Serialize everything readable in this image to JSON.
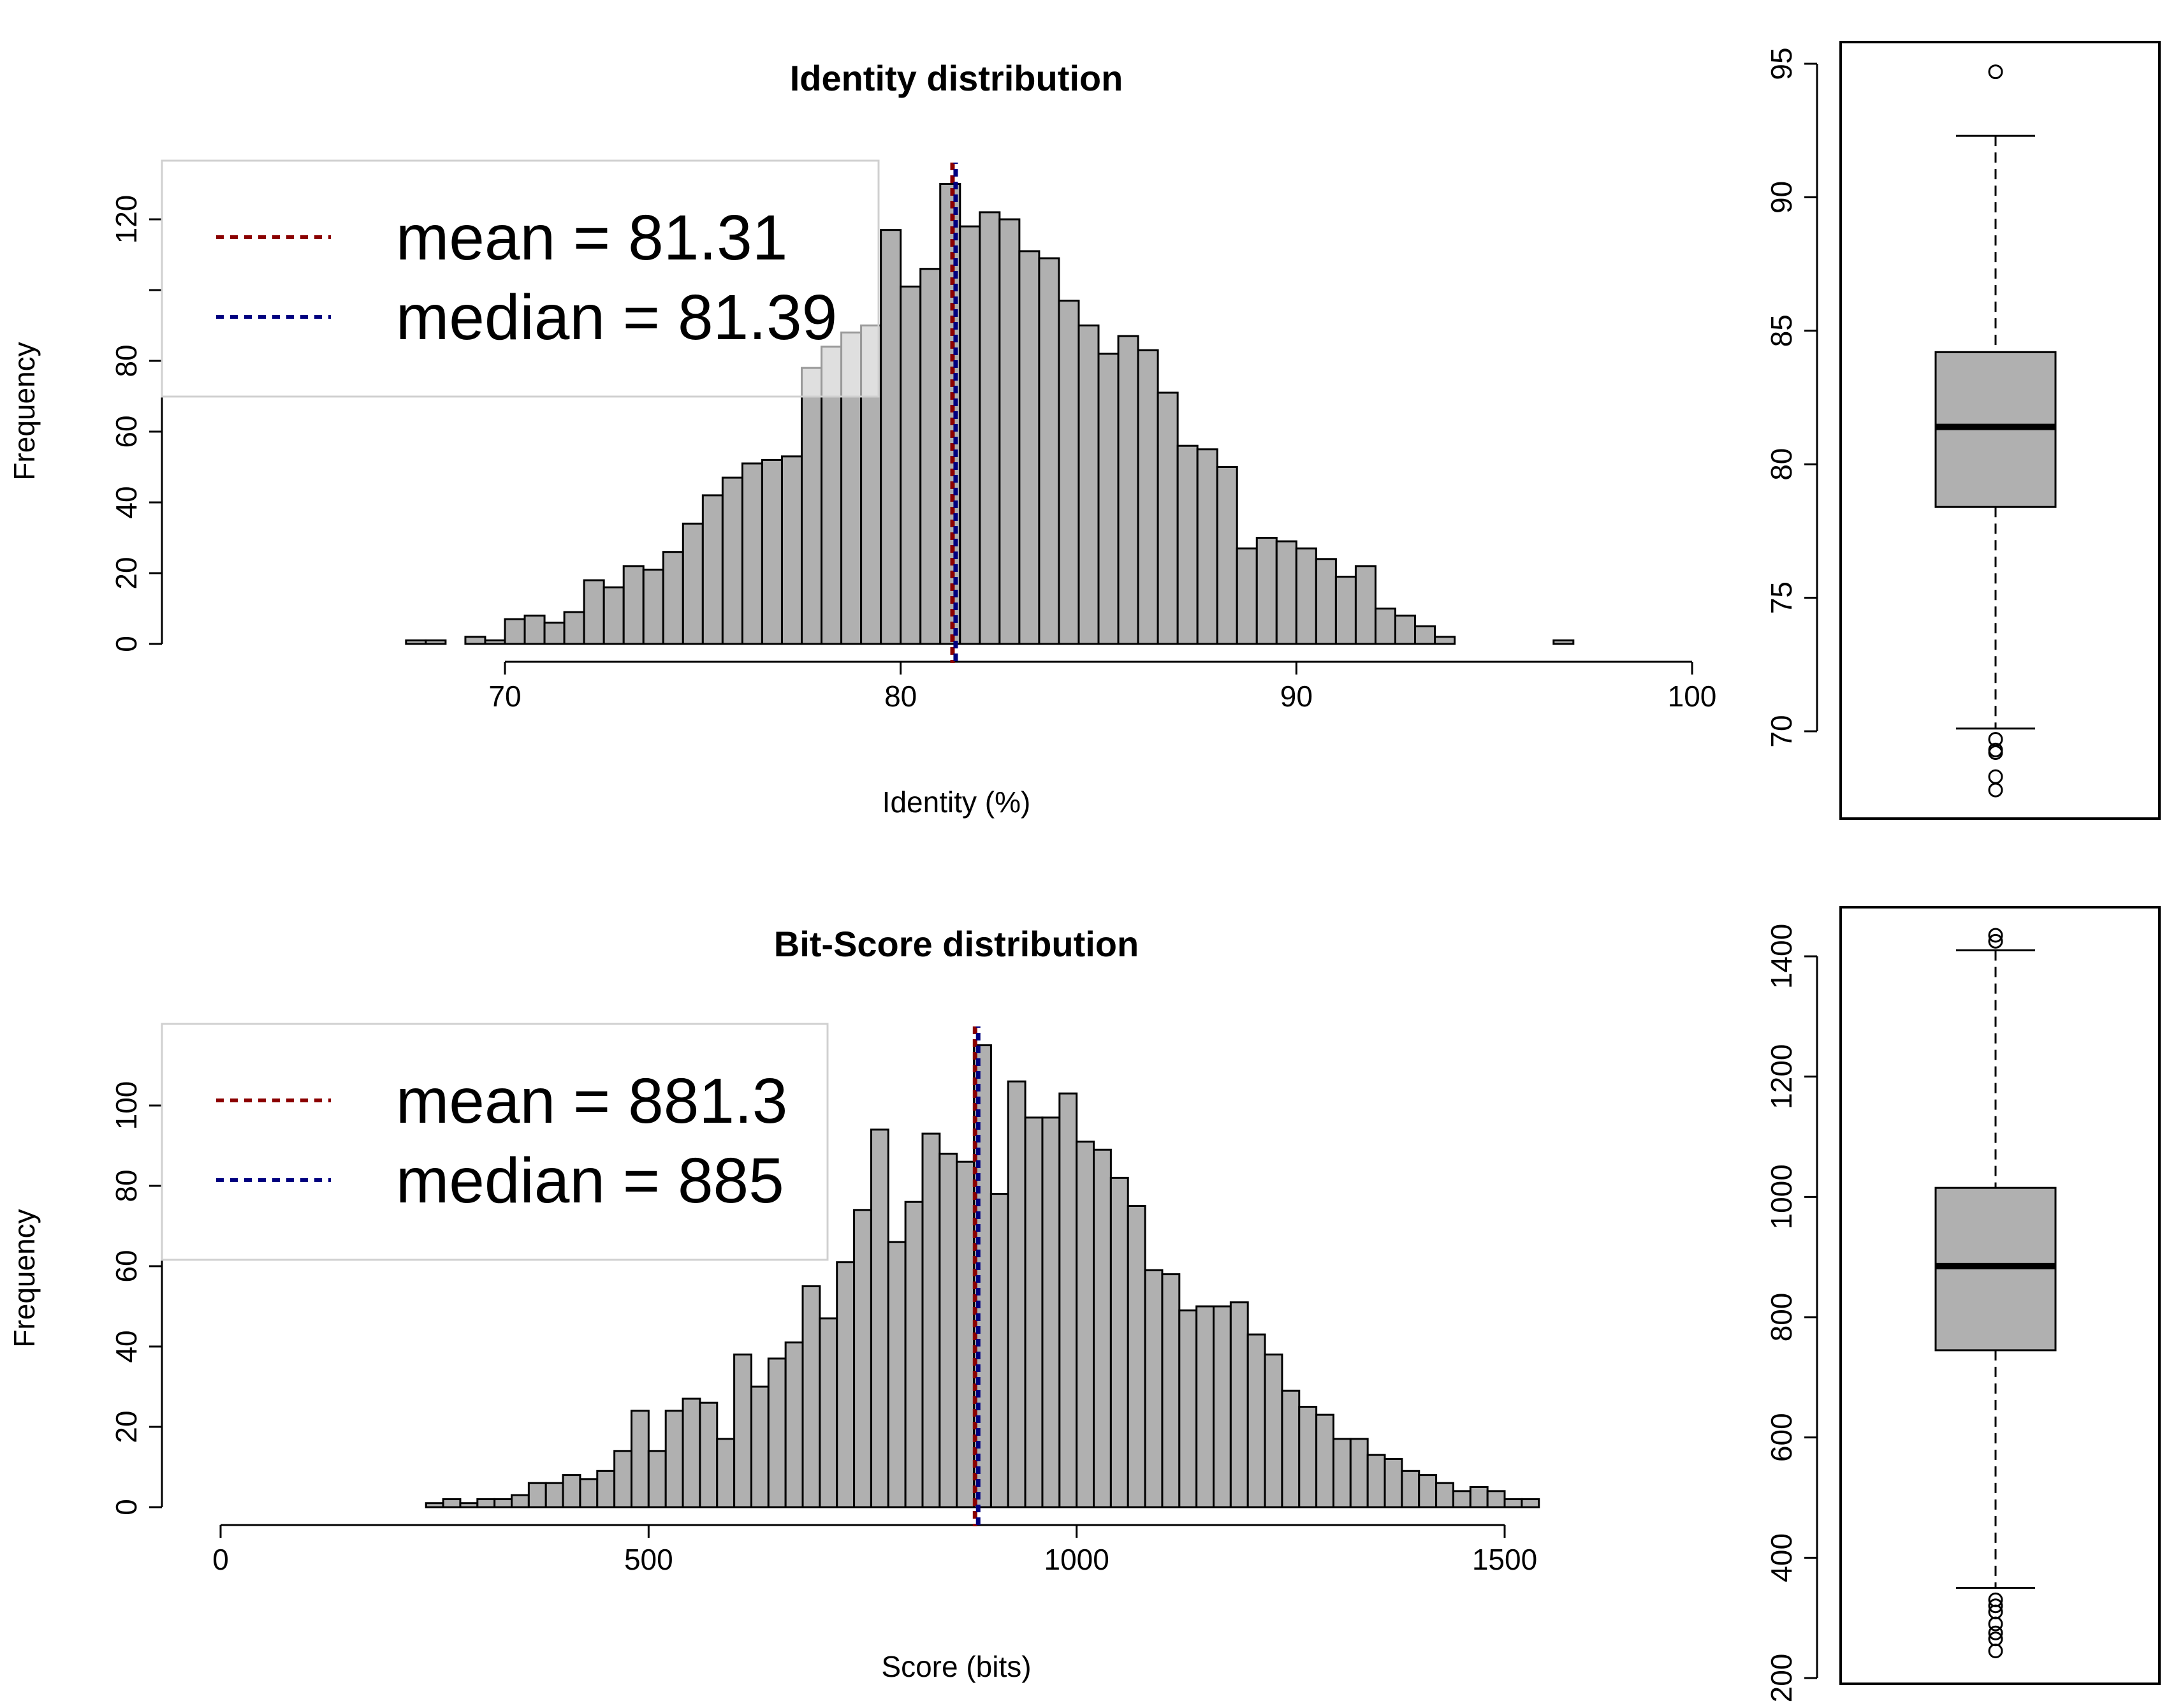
{
  "colors": {
    "bar_fill": "#b0b0b0",
    "axis": "#000000",
    "mean_line": "#8b0000",
    "median_line": "#000080",
    "legend_box_fill": "#ffffff",
    "legend_box_stroke": "#d0d0d0"
  },
  "chart_data": [
    {
      "type": "bar",
      "subtype": "histogram",
      "title": "Identity distribution",
      "xlabel": "Identity (%)",
      "ylabel": "Frequency",
      "xlim": [
        70,
        100
      ],
      "ylim": [
        0,
        120
      ],
      "x_ticks": [
        "70",
        "80",
        "90",
        "100"
      ],
      "y_ticks": [
        "0",
        "20",
        "40",
        "60",
        "80",
        "",
        "120"
      ],
      "y_tick_values": [
        0,
        20,
        40,
        60,
        80,
        100,
        120
      ],
      "bin_width": 0.5,
      "bin_start": 67.5,
      "values": [
        1,
        1,
        0,
        2,
        1,
        7,
        8,
        6,
        9,
        18,
        16,
        22,
        21,
        26,
        34,
        42,
        47,
        51,
        52,
        53,
        78,
        84,
        88,
        90,
        117,
        101,
        106,
        130,
        118,
        122,
        120,
        111,
        109,
        97,
        90,
        82,
        87,
        83,
        71,
        56,
        55,
        50,
        27,
        30,
        29,
        27,
        24,
        19,
        22,
        10,
        8,
        5,
        2,
        0,
        0,
        0,
        0,
        0,
        1
      ],
      "mean": 81.31,
      "median": 81.39,
      "legend_position": "top-left",
      "legend": [
        {
          "label": "mean = 81.31",
          "line": "mean"
        },
        {
          "label": "median = 81.39",
          "line": "median"
        }
      ]
    },
    {
      "type": "boxplot",
      "ylim": [
        70,
        95
      ],
      "y_ticks": [
        "70",
        "75",
        "80",
        "85",
        "90",
        "95"
      ],
      "y_tick_values": [
        70,
        75,
        80,
        85,
        90,
        95
      ],
      "whisker_low": 70.1,
      "q1": 78.4,
      "median": 81.4,
      "q3": 84.2,
      "whisker_high": 92.3,
      "outliers": [
        94.7,
        69.7,
        69.3,
        69.2,
        68.3,
        67.8
      ]
    },
    {
      "type": "bar",
      "subtype": "histogram",
      "title": "Bit-Score distribution",
      "xlabel": "Score (bits)",
      "ylabel": "Frequency",
      "xlim": [
        0,
        1500
      ],
      "ylim": [
        0,
        100
      ],
      "x_ticks": [
        "0",
        "500",
        "1000",
        "1500"
      ],
      "y_ticks": [
        "0",
        "20",
        "40",
        "60",
        "80",
        "100"
      ],
      "y_tick_values": [
        0,
        20,
        40,
        60,
        80,
        100
      ],
      "bin_width": 20,
      "bin_start": 240,
      "values": [
        1,
        2,
        1,
        2,
        2,
        3,
        6,
        6,
        8,
        7,
        9,
        14,
        24,
        14,
        24,
        27,
        26,
        17,
        38,
        30,
        37,
        41,
        55,
        47,
        61,
        74,
        94,
        66,
        76,
        93,
        88,
        86,
        115,
        78,
        106,
        97,
        97,
        103,
        91,
        89,
        82,
        75,
        59,
        58,
        49,
        50,
        50,
        51,
        43,
        38,
        29,
        25,
        23,
        17,
        17,
        13,
        12,
        9,
        8,
        6,
        4,
        5,
        4,
        2,
        2
      ],
      "mean": 881.3,
      "median": 885,
      "legend_position": "top-left",
      "legend": [
        {
          "label": "mean = 881.3",
          "line": "mean"
        },
        {
          "label": "median = 885",
          "line": "median"
        }
      ]
    },
    {
      "type": "boxplot",
      "ylim": [
        200,
        1400
      ],
      "y_ticks": [
        "200",
        "400",
        "600",
        "800",
        "1000",
        "1200",
        "1400"
      ],
      "y_tick_values": [
        200,
        400,
        600,
        800,
        1000,
        1200,
        1400
      ],
      "whisker_low": 350,
      "q1": 745,
      "median": 885,
      "q3": 1015,
      "whisker_high": 1410,
      "outliers": [
        1435,
        1425,
        330,
        320,
        310,
        290,
        275,
        265,
        245
      ]
    }
  ]
}
